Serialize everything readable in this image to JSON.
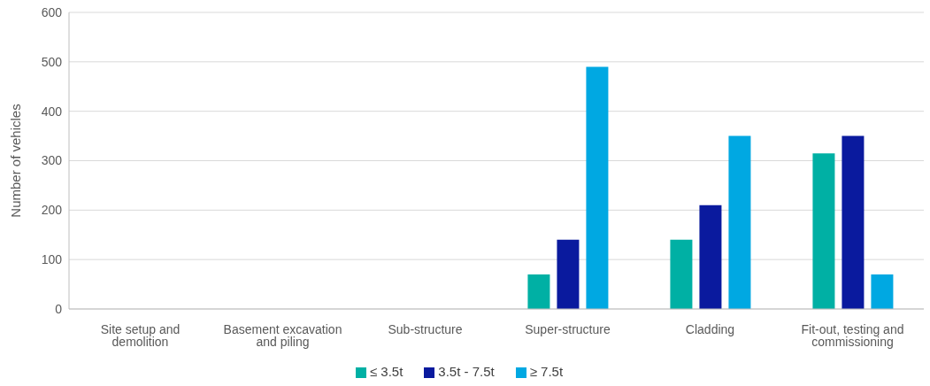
{
  "chart_data": {
    "type": "bar",
    "ylabel": "Number of vehicles",
    "categories": [
      "Site setup and demolition",
      "Basement excavation and piling",
      "Sub-structure",
      "Super-structure",
      "Cladding",
      "Fit-out, testing and commissioning"
    ],
    "series": [
      {
        "name": "≤ 3.5t",
        "color": "#00b0a4",
        "values": [
          0,
          0,
          0,
          70,
          140,
          315
        ]
      },
      {
        "name": "3.5t - 7.5t",
        "color": "#0a1a9e",
        "values": [
          0,
          0,
          0,
          140,
          210,
          350
        ]
      },
      {
        "name": "≥ 7.5t",
        "color": "#00a8e2",
        "values": [
          0,
          0,
          0,
          490,
          350,
          70
        ]
      }
    ],
    "ylim": [
      0,
      600
    ],
    "yticks": [
      0,
      100,
      200,
      300,
      400,
      500,
      600
    ],
    "grid": "y",
    "legend": "bottom"
  }
}
